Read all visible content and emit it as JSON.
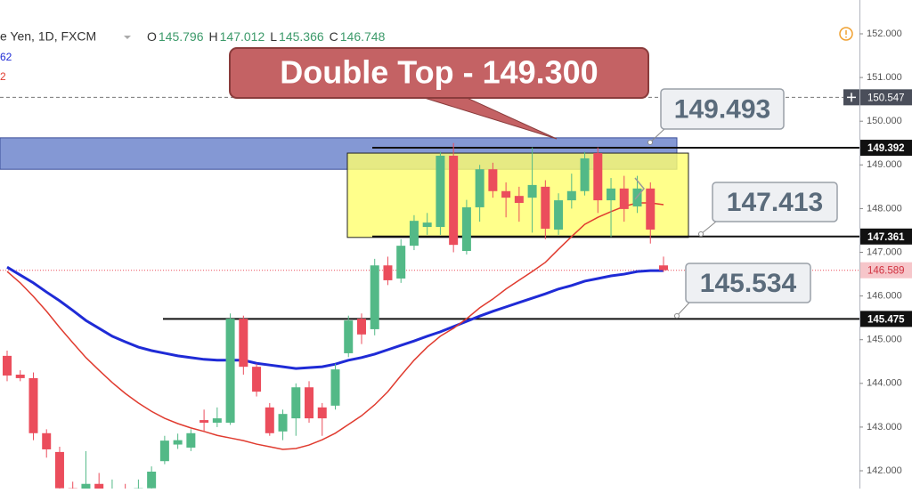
{
  "chart_data": {
    "type": "candlestick",
    "title": "e Yen, 1D, FXCM",
    "ohlc_header": [
      {
        "label": "O",
        "value": 145.796
      },
      {
        "label": "H",
        "value": 147.012
      },
      {
        "label": "L",
        "value": 145.366
      },
      {
        "label": "C",
        "value": 146.748
      }
    ],
    "indicator_labels": [
      {
        "text": "62",
        "color": "#1f2bd6"
      },
      {
        "text": "2",
        "color": "#e03b2f"
      }
    ],
    "up_color": "#53b987",
    "down_color": "#eb4d5c",
    "open": [
      144.63,
      144.2,
      144.12,
      142.86,
      142.43,
      141.6,
      141.45,
      141.7,
      141.4,
      141.55,
      141.45,
      141.6,
      142.22,
      142.6,
      142.53,
      143.16,
      143.1,
      143.1,
      145.48,
      144.38,
      143.45,
      142.9,
      143.2,
      143.91,
      143.45,
      143.49,
      144.69,
      145.48,
      145.24,
      146.7,
      146.4,
      147.15,
      147.58,
      147.58,
      149.21,
      147.03,
      148.03,
      148.9,
      148.4,
      148.29,
      148.25,
      148.5,
      147.52,
      148.19,
      148.4,
      149.27,
      148.19,
      148.46,
      148.05,
      148.46,
      146.7
    ],
    "high": [
      144.75,
      144.3,
      144.25,
      142.95,
      142.55,
      141.75,
      142.45,
      141.95,
      141.8,
      141.7,
      141.8,
      142.1,
      142.8,
      142.85,
      142.95,
      143.4,
      143.45,
      145.6,
      145.55,
      144.45,
      143.55,
      143.4,
      144.0,
      144.05,
      143.55,
      144.45,
      145.55,
      145.6,
      146.85,
      146.9,
      147.3,
      147.85,
      147.9,
      149.3,
      149.5,
      148.2,
      149.0,
      149.05,
      148.6,
      148.5,
      149.4,
      148.65,
      148.35,
      148.8,
      149.3,
      149.4,
      148.7,
      148.75,
      148.75,
      148.6,
      146.9
    ],
    "low": [
      144.05,
      144.05,
      142.7,
      142.3,
      141.5,
      141.3,
      141.35,
      141.4,
      141.3,
      141.35,
      141.35,
      141.5,
      142.15,
      142.5,
      142.45,
      142.9,
      143.0,
      143.05,
      144.2,
      143.7,
      142.8,
      142.7,
      142.8,
      143.1,
      142.8,
      143.4,
      144.6,
      144.9,
      145.1,
      146.25,
      146.3,
      147.05,
      147.4,
      147.4,
      147.0,
      146.95,
      147.7,
      148.25,
      147.8,
      147.7,
      147.45,
      147.3,
      147.4,
      148.0,
      148.3,
      147.9,
      147.35,
      147.7,
      147.9,
      147.2,
      146.55
    ],
    "close": [
      144.18,
      144.12,
      142.86,
      142.49,
      141.6,
      141.4,
      141.7,
      141.5,
      141.55,
      141.45,
      141.6,
      141.98,
      142.69,
      142.7,
      142.86,
      143.1,
      143.2,
      145.48,
      144.38,
      143.81,
      142.86,
      143.3,
      143.91,
      143.2,
      143.2,
      144.32,
      145.44,
      145.12,
      146.7,
      146.36,
      147.15,
      147.72,
      147.68,
      149.21,
      147.17,
      148.03,
      148.9,
      148.4,
      148.25,
      148.13,
      148.54,
      147.54,
      148.19,
      148.4,
      149.15,
      148.19,
      148.46,
      147.99,
      148.46,
      147.52,
      146.59
    ],
    "moving_averages": [
      {
        "color": "#1f2bd6",
        "width": 3,
        "values": [
          146.66,
          146.48,
          146.3,
          146.09,
          145.89,
          145.67,
          145.44,
          145.26,
          145.08,
          144.95,
          144.83,
          144.75,
          144.69,
          144.63,
          144.59,
          144.55,
          144.53,
          144.53,
          144.53,
          144.46,
          144.42,
          144.38,
          144.34,
          144.36,
          144.38,
          144.44,
          144.53,
          144.59,
          144.67,
          144.77,
          144.87,
          144.97,
          145.08,
          145.18,
          145.3,
          145.42,
          145.54,
          145.65,
          145.75,
          145.85,
          145.95,
          146.05,
          146.16,
          146.24,
          146.34,
          146.4,
          146.46,
          146.5,
          146.56,
          146.58,
          146.58
        ]
      },
      {
        "color": "#e03b2f",
        "width": 1.5,
        "values": [
          146.56,
          146.3,
          145.99,
          145.65,
          145.28,
          144.93,
          144.59,
          144.3,
          144.02,
          143.77,
          143.55,
          143.36,
          143.2,
          143.08,
          142.98,
          142.9,
          142.81,
          142.75,
          142.69,
          142.61,
          142.55,
          142.49,
          142.51,
          142.59,
          142.71,
          142.86,
          143.06,
          143.26,
          143.51,
          143.81,
          144.18,
          144.53,
          144.83,
          145.08,
          145.26,
          145.48,
          145.73,
          145.93,
          146.16,
          146.36,
          146.56,
          146.77,
          147.07,
          147.36,
          147.64,
          147.8,
          147.93,
          148.05,
          148.13,
          148.13,
          148.09
        ]
      }
    ],
    "ylim": [
      141.593,
      152.774
    ],
    "yticks": [
      {
        "value": 142,
        "label": "142.000"
      },
      {
        "value": 143,
        "label": "143.000"
      },
      {
        "value": 144,
        "label": "144.000"
      },
      {
        "value": 145,
        "label": "145.000"
      },
      {
        "value": 146,
        "label": "146.000"
      },
      {
        "value": 147,
        "label": "147.000"
      },
      {
        "value": 148,
        "label": "148.000"
      },
      {
        "value": 149,
        "label": "149.000"
      },
      {
        "value": 150,
        "label": "150.000"
      },
      {
        "value": 151,
        "label": "151.000"
      },
      {
        "value": 152,
        "label": "152.000"
      }
    ],
    "zones": [
      {
        "y": [
          149.62,
          148.9
        ],
        "color": "#6f86cc"
      },
      {
        "y": [
          149.27,
          147.34
        ],
        "color": "#ffff6e"
      }
    ],
    "levels": [
      {
        "value": 149.392
      },
      {
        "value": 147.361
      },
      {
        "value": 145.475
      }
    ],
    "crosshair": 150.547,
    "last_price": 146.589,
    "annotations": [
      {
        "text": "Double Top - 149.300"
      },
      {
        "text": "149.493"
      },
      {
        "text": "147.413"
      },
      {
        "text": "145.534"
      }
    ]
  }
}
